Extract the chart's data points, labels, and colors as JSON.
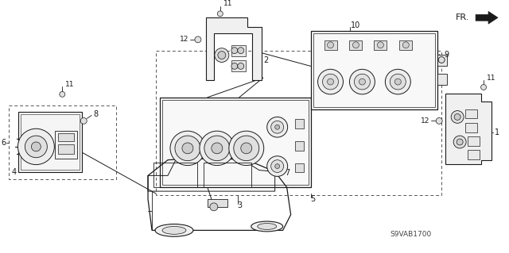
{
  "bg_color": "#ffffff",
  "line_color": "#1a1a1a",
  "label_color": "#1a1a1a",
  "diagram_code": "S9VAB1700",
  "fig_width": 6.4,
  "fig_height": 3.19,
  "dpi": 100
}
